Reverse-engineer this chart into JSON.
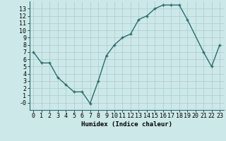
{
  "x": [
    0,
    1,
    2,
    3,
    4,
    5,
    6,
    7,
    8,
    9,
    10,
    11,
    12,
    13,
    14,
    15,
    16,
    17,
    18,
    19,
    21,
    22,
    23
  ],
  "y": [
    7,
    5.5,
    5.5,
    3.5,
    2.5,
    1.5,
    1.5,
    -0.1,
    3.0,
    6.5,
    8.0,
    9.0,
    9.5,
    11.5,
    12.0,
    13.0,
    13.5,
    13.5,
    13.5,
    11.5,
    7.0,
    5.0,
    8.0
  ],
  "line_color": "#2d6b6b",
  "marker": "+",
  "marker_size": 3,
  "linewidth": 1.0,
  "bg_color": "#cce8e8",
  "grid_color": "#aacccc",
  "xlabel": "Humidex (Indice chaleur)",
  "xlim": [
    -0.5,
    23.5
  ],
  "ylim": [
    -1,
    14
  ],
  "xticks": [
    0,
    1,
    2,
    3,
    4,
    5,
    6,
    7,
    8,
    9,
    10,
    11,
    12,
    13,
    14,
    15,
    16,
    17,
    18,
    19,
    20,
    21,
    22,
    23
  ],
  "yticks": [
    0,
    1,
    2,
    3,
    4,
    5,
    6,
    7,
    8,
    9,
    10,
    11,
    12,
    13
  ],
  "xlabel_fontsize": 6.5,
  "tick_fontsize": 6.0,
  "ytick_labels": [
    "-0",
    "1",
    "2",
    "3",
    "4",
    "5",
    "6",
    "7",
    "8",
    "9",
    "10",
    "11",
    "12",
    "13"
  ]
}
